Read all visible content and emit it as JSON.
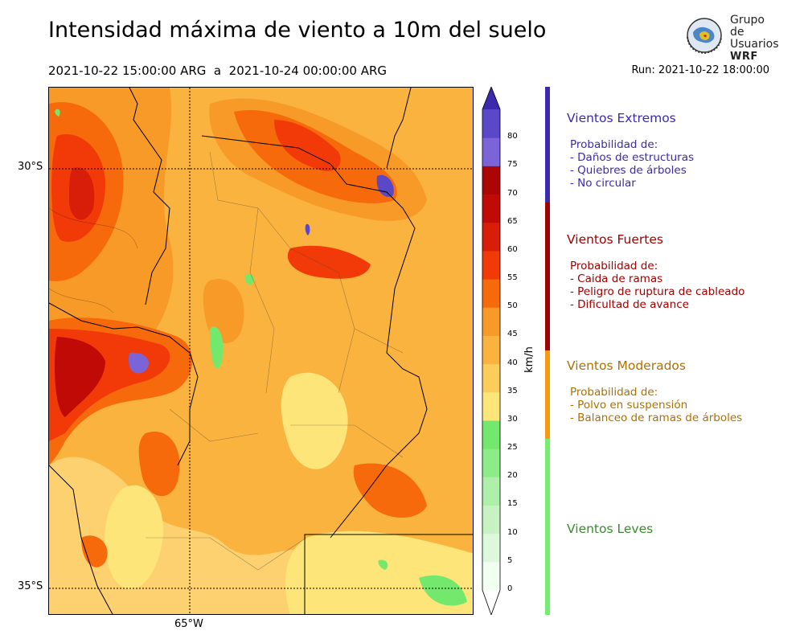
{
  "header": {
    "title": "Intensidad máxima de viento a 10m del suelo",
    "period": "2021-10-22 15:00:00 ARG  a  2021-10-24 00:00:00 ARG",
    "run": "Run: 2021-10-22 18:00:00"
  },
  "logo": {
    "line1": "Grupo de",
    "line2": "Usuarios",
    "line3": "WRF"
  },
  "map": {
    "lat_labels": [
      "30°S",
      "35°S"
    ],
    "lon_labels": [
      "65°W"
    ],
    "colors": {
      "c25": "#fde57a",
      "c30": "#fdd070",
      "c35": "#fbb340",
      "c40": "#f89a28",
      "c45": "#f66a0c",
      "c50": "#f23a08",
      "c55": "#d81d08",
      "c60": "#c00a06",
      "c65": "#ab0505",
      "c70": "#7a64d8",
      "c75": "#5a48c8",
      "c80": "#3b2ab0",
      "light": "#73f26e"
    }
  },
  "colorbar": {
    "unit": "km/h",
    "ticks": [
      "0",
      "5",
      "10",
      "15",
      "20",
      "25",
      "30",
      "35",
      "40",
      "45",
      "50",
      "55",
      "60",
      "65",
      "70",
      "75",
      "80"
    ],
    "colors": [
      "#f1fff0",
      "#def8dc",
      "#c7f3c3",
      "#aef0a9",
      "#8eec88",
      "#73e86c",
      "#fde57a",
      "#fdcd5c",
      "#fbb340",
      "#f89a28",
      "#f66a0c",
      "#f23a08",
      "#d81d08",
      "#c00a06",
      "#ab0505",
      "#7a64d8",
      "#5a48c8"
    ],
    "top_color": "#3b2ab0"
  },
  "categories": [
    {
      "title": "Vientos Extremos",
      "color": "#3b2ab0",
      "lines": [
        "Probabilidad de:",
        "- Daños de estructuras",
        "- Quiebres de árboles",
        "- No circular"
      ]
    },
    {
      "title": "Vientos Fuertes",
      "color": "#a00000",
      "lines": [
        "Probabilidad de:",
        "- Caida de ramas",
        "- Peligro de ruptura de cableado",
        "- Dificultad de avance"
      ]
    },
    {
      "title": "Vientos Moderados",
      "color": "#b07000",
      "lines": [
        "Probabilidad de:",
        "- Polvo en suspensión",
        "- Balanceo de ramas de árboles"
      ]
    },
    {
      "title": "Vientos Leves",
      "color": "#3a8a30",
      "lines": []
    }
  ],
  "bands": [
    {
      "color": "#3b2ab0"
    },
    {
      "color": "#a00000"
    },
    {
      "color": "#f89a10"
    },
    {
      "color": "#73ef6e"
    }
  ]
}
